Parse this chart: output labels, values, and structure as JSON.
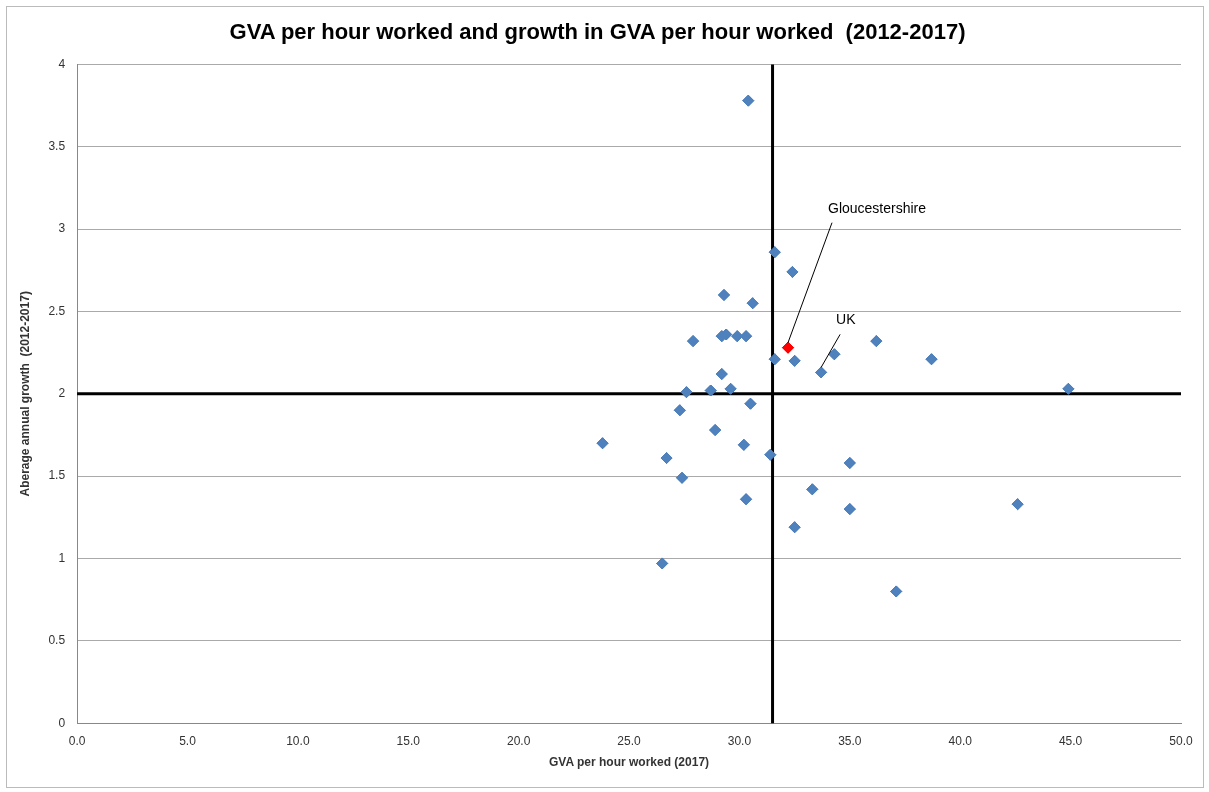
{
  "chart_data": {
    "type": "scatter",
    "title": "GVA per hour worked and growth in GVA per hour worked  (2012-2017)",
    "xlabel": "GVA per hour worked (2017)",
    "ylabel": "Aberage annual growth  (2012-2017)",
    "series": [
      {
        "color": "#4f81bd",
        "x": [
          30.4,
          31.6,
          32.4,
          29.3,
          30.6,
          27.9,
          29.2,
          29.4,
          29.9,
          30.3,
          31.6,
          32.5,
          34.3,
          36.2,
          38.7,
          44.9,
          29.2,
          27.6,
          28.7,
          29.6,
          30.5,
          27.3,
          28.9,
          30.2,
          31.4,
          23.8,
          26.7,
          27.4,
          30.3,
          26.5,
          33.3,
          35.0,
          35.0,
          32.5,
          37.1,
          42.6
        ],
        "values": [
          3.78,
          2.86,
          2.74,
          2.6,
          2.55,
          2.32,
          2.35,
          2.36,
          2.35,
          2.35,
          2.21,
          2.2,
          2.24,
          2.32,
          2.21,
          2.03,
          2.12,
          2.01,
          2.02,
          2.03,
          1.94,
          1.9,
          1.78,
          1.69,
          1.63,
          1.7,
          1.61,
          1.49,
          1.36,
          0.97,
          1.42,
          1.58,
          1.3,
          1.19,
          0.8,
          1.33
        ]
      },
      {
        "color": "#ff0000",
        "x": [
          32.2
        ],
        "values": [
          2.28
        ]
      },
      {
        "color": "#4f81bd",
        "x": [
          33.7
        ],
        "values": [
          2.13
        ]
      }
    ],
    "annotations": [
      {
        "text": "Gloucestershire",
        "x": 32.2,
        "y": 2.28
      },
      {
        "text": "UK",
        "x": 33.7,
        "y": 2.13
      }
    ],
    "ref_lines": [
      {
        "axis": "x",
        "value": 31.5,
        "color": "#000000"
      },
      {
        "axis": "y",
        "value": 2,
        "color": "#000000"
      }
    ],
    "xlim": [
      0,
      50
    ],
    "xticks": [
      {
        "value": 0,
        "label": "0.0"
      },
      {
        "value": 5,
        "label": "5.0"
      },
      {
        "value": 10,
        "label": "10.0"
      },
      {
        "value": 15,
        "label": "15.0"
      },
      {
        "value": 20,
        "label": "20.0"
      },
      {
        "value": 25,
        "label": "25.0"
      },
      {
        "value": 30,
        "label": "30.0"
      },
      {
        "value": 35,
        "label": "35.0"
      },
      {
        "value": 40,
        "label": "40.0"
      },
      {
        "value": 45,
        "label": "45.0"
      },
      {
        "value": 50,
        "label": "50.0"
      }
    ],
    "ylim": [
      0,
      4
    ],
    "yticks": [
      0,
      0.5,
      1,
      1.5,
      2,
      2.5,
      3,
      3.5,
      4
    ],
    "grid": "y",
    "legend": false,
    "marker": "diamond"
  }
}
